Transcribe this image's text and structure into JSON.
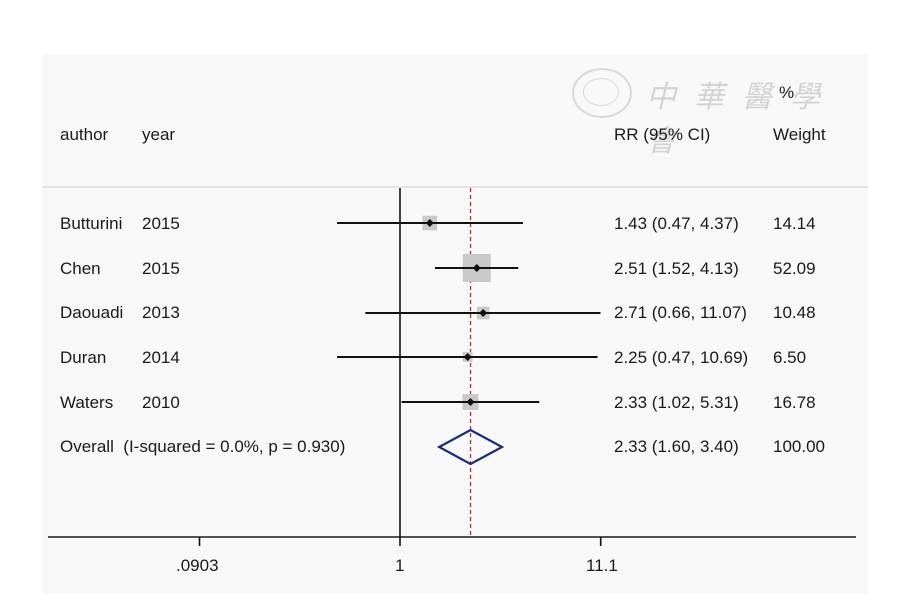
{
  "watermark": {
    "text": "中華醫學會"
  },
  "header": {
    "author": "author",
    "year": "year",
    "rr": "RR (95% CI)",
    "weight_pct": "%",
    "weight": "Weight"
  },
  "chart_data": {
    "type": "forest",
    "scale": "log",
    "x_ticks": [
      0.0903,
      1,
      11.1
    ],
    "x_tick_labels": [
      ".0903",
      "1",
      "11.1"
    ],
    "null_line": 1,
    "overall_line": 2.33,
    "studies": [
      {
        "author": "Butturini",
        "year": "2015",
        "rr": 1.43,
        "lo": 0.47,
        "hi": 4.37,
        "ci_text": "1.43 (0.47, 4.37)",
        "weight": "14.14"
      },
      {
        "author": "Chen",
        "year": "2015",
        "rr": 2.51,
        "lo": 1.52,
        "hi": 4.13,
        "ci_text": "2.51 (1.52, 4.13)",
        "weight": "52.09"
      },
      {
        "author": "Daouadi",
        "year": "2013",
        "rr": 2.71,
        "lo": 0.66,
        "hi": 11.07,
        "ci_text": "2.71 (0.66, 11.07)",
        "weight": "10.48"
      },
      {
        "author": "Duran",
        "year": "2014",
        "rr": 2.25,
        "lo": 0.47,
        "hi": 10.69,
        "ci_text": "2.25 (0.47, 10.69)",
        "weight": "6.50"
      },
      {
        "author": "Waters",
        "year": "2010",
        "rr": 2.33,
        "lo": 1.02,
        "hi": 5.31,
        "ci_text": "2.33 (1.02, 5.31)",
        "weight": "16.78"
      }
    ],
    "overall": {
      "label": "Overall  (I-squared = 0.0%, p = 0.930)",
      "rr": 2.33,
      "lo": 1.6,
      "hi": 3.4,
      "ci_text": "2.33 (1.60, 3.40)",
      "weight": "100.00"
    }
  }
}
